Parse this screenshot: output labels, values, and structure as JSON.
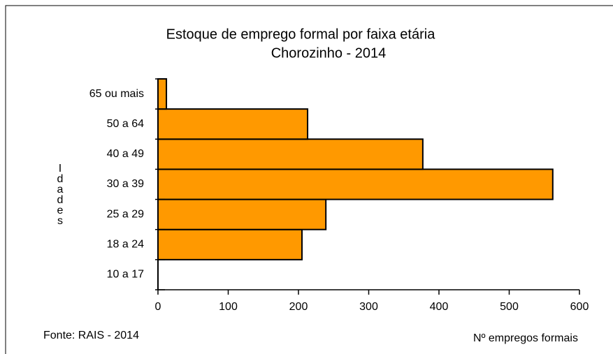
{
  "chart_data": {
    "type": "bar",
    "orientation": "horizontal",
    "title": "Estoque de emprego formal por faixa etária",
    "subtitle": "Chorozinho - 2014",
    "ylabel": "Idades",
    "xlabel": "Nº empregos formais",
    "source": "Fonte: RAIS - 2014",
    "categories": [
      "10 a 17",
      "18 a 24",
      "25 a 29",
      "30 a 39",
      "40 a 49",
      "50 a 64",
      "65 ou mais"
    ],
    "values": [
      0,
      205,
      239,
      562,
      377,
      213,
      12
    ],
    "color": "#ff9900",
    "xlim": [
      0,
      600
    ],
    "xticks": [
      0,
      100,
      200,
      300,
      400,
      500,
      600
    ]
  }
}
